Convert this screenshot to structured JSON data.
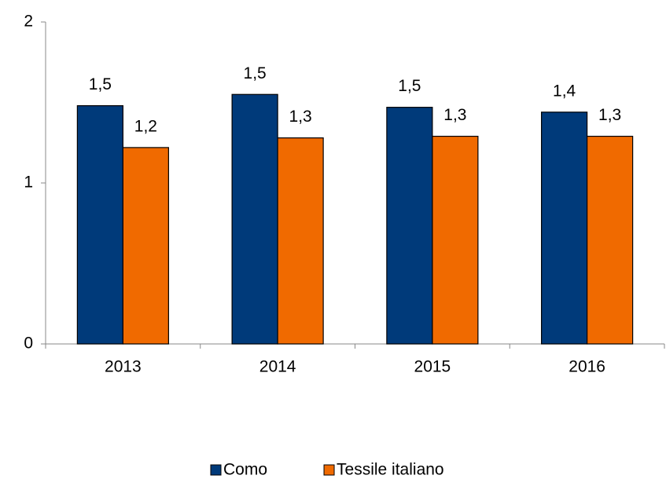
{
  "chart_data": {
    "type": "bar",
    "categories": [
      "2013",
      "2014",
      "2015",
      "2016"
    ],
    "series": [
      {
        "name": "Como",
        "color": "#003a7a",
        "values": [
          1.48,
          1.55,
          1.47,
          1.44
        ],
        "value_labels": [
          "1,5",
          "1,5",
          "1,5",
          "1,4"
        ]
      },
      {
        "name": "Tessile italiano",
        "color": "#f06a00",
        "values": [
          1.22,
          1.28,
          1.29,
          1.29
        ],
        "value_labels": [
          "1,2",
          "1,3",
          "1,3",
          "1,3"
        ]
      }
    ],
    "ylim": [
      0,
      2
    ],
    "yticks": [
      0,
      1,
      2
    ],
    "grid": false,
    "legend": "bottom"
  }
}
